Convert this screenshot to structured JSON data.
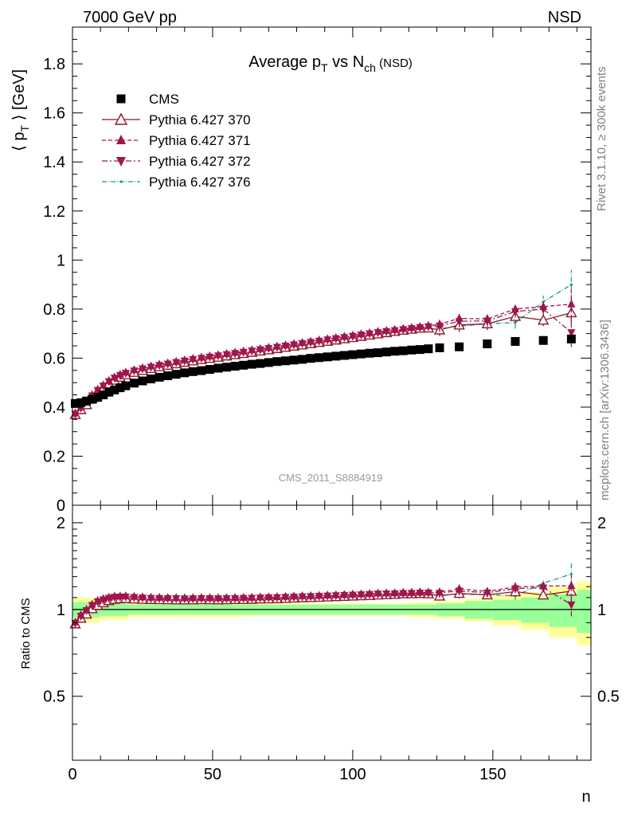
{
  "header": {
    "left": "7000 GeV pp",
    "right": "NSD"
  },
  "side_texts": {
    "rivet": "Rivet 3.1.10, ≥ 300k events",
    "mcplots": "mcplots.cern.ch [arXiv:1306.3436]"
  },
  "watermark": "CMS_2011_S8884919",
  "chart_data": [
    {
      "type": "scatter",
      "title_parts": {
        "main": "Average p",
        "sub1": "T",
        "mid": " vs N",
        "sub2": "ch",
        "suffix": " (NSD)"
      },
      "ylabel_parts": {
        "pre": "⟨ p",
        "sub": "T",
        "post": " ⟩ [GeV]"
      },
      "xlim": [
        0,
        185
      ],
      "ylim": [
        0,
        1.95
      ],
      "y_ticks": [
        "0",
        "0.2",
        "0.4",
        "0.6",
        "0.8",
        "1",
        "1.2",
        "1.4",
        "1.6",
        "1.8"
      ],
      "x": [
        1,
        3,
        5,
        7,
        9,
        11,
        13,
        15,
        17,
        19,
        22,
        25,
        28,
        31,
        34,
        37,
        40,
        43,
        46,
        49,
        52,
        55,
        58,
        61,
        64,
        67,
        70,
        73,
        76,
        79,
        82,
        85,
        88,
        91,
        94,
        97,
        100,
        103,
        106,
        109,
        112,
        115,
        118,
        121,
        124,
        127,
        131,
        138,
        148,
        158,
        168,
        178
      ],
      "series": [
        {
          "name": "CMS",
          "color": "#000000",
          "marker": "square",
          "values": [
            0.415,
            0.418,
            0.425,
            0.432,
            0.44,
            0.45,
            0.461,
            0.47,
            0.479,
            0.487,
            0.498,
            0.507,
            0.515,
            0.522,
            0.528,
            0.534,
            0.54,
            0.545,
            0.549,
            0.554,
            0.559,
            0.563,
            0.567,
            0.571,
            0.575,
            0.578,
            0.582,
            0.586,
            0.589,
            0.592,
            0.595,
            0.599,
            0.602,
            0.605,
            0.608,
            0.611,
            0.614,
            0.617,
            0.62,
            0.622,
            0.625,
            0.628,
            0.63,
            0.633,
            0.635,
            0.638,
            0.642,
            0.646,
            0.658,
            0.668,
            0.672,
            0.678
          ]
        },
        {
          "name": "Pythia 6.427 370",
          "color": "#8b1a2b",
          "marker": "triangle-open",
          "dash": "",
          "values": [
            0.37,
            0.39,
            0.41,
            0.435,
            0.455,
            0.475,
            0.495,
            0.51,
            0.522,
            0.532,
            0.542,
            0.55,
            0.558,
            0.565,
            0.571,
            0.577,
            0.583,
            0.589,
            0.594,
            0.599,
            0.604,
            0.609,
            0.614,
            0.619,
            0.624,
            0.629,
            0.634,
            0.639,
            0.644,
            0.649,
            0.654,
            0.659,
            0.664,
            0.669,
            0.674,
            0.679,
            0.684,
            0.689,
            0.694,
            0.699,
            0.704,
            0.709,
            0.714,
            0.718,
            0.722,
            0.723,
            0.715,
            0.735,
            0.74,
            0.77,
            0.755,
            0.785
          ]
        },
        {
          "name": "Pythia 6.427 371",
          "color": "#a0154d",
          "marker": "triangle-up",
          "dash": "5,3",
          "values": [
            0.375,
            0.4,
            0.425,
            0.45,
            0.472,
            0.49,
            0.508,
            0.522,
            0.533,
            0.542,
            0.552,
            0.56,
            0.567,
            0.574,
            0.58,
            0.586,
            0.592,
            0.598,
            0.603,
            0.608,
            0.613,
            0.618,
            0.623,
            0.628,
            0.633,
            0.638,
            0.643,
            0.648,
            0.653,
            0.658,
            0.663,
            0.668,
            0.673,
            0.678,
            0.683,
            0.688,
            0.693,
            0.698,
            0.703,
            0.708,
            0.712,
            0.716,
            0.72,
            0.724,
            0.728,
            0.732,
            0.738,
            0.762,
            0.76,
            0.8,
            0.81,
            0.82
          ]
        },
        {
          "name": "Pythia 6.427 372",
          "color": "#a0154d",
          "marker": "triangle-down",
          "dash": "7,3,2,3",
          "values": [
            0.372,
            0.397,
            0.422,
            0.447,
            0.469,
            0.487,
            0.505,
            0.519,
            0.53,
            0.539,
            0.549,
            0.557,
            0.564,
            0.571,
            0.577,
            0.583,
            0.589,
            0.595,
            0.6,
            0.605,
            0.61,
            0.615,
            0.62,
            0.625,
            0.63,
            0.635,
            0.64,
            0.645,
            0.65,
            0.655,
            0.66,
            0.665,
            0.67,
            0.675,
            0.68,
            0.685,
            0.69,
            0.695,
            0.7,
            0.705,
            0.709,
            0.713,
            0.717,
            0.721,
            0.725,
            0.729,
            0.732,
            0.75,
            0.752,
            0.79,
            0.8,
            0.705
          ]
        },
        {
          "name": "Pythia 6.427 376",
          "color": "#1a9a8a",
          "marker": "dot",
          "dash": "6,2,1,2",
          "values": [
            0.368,
            0.392,
            0.415,
            0.438,
            0.458,
            0.475,
            0.49,
            0.502,
            0.512,
            0.52,
            0.53,
            0.538,
            0.546,
            0.553,
            0.56,
            0.566,
            0.572,
            0.578,
            0.583,
            0.588,
            0.593,
            0.598,
            0.603,
            0.608,
            0.613,
            0.618,
            0.623,
            0.628,
            0.633,
            0.638,
            0.643,
            0.648,
            0.653,
            0.658,
            0.663,
            0.668,
            0.673,
            0.678,
            0.683,
            0.688,
            0.693,
            0.698,
            0.703,
            0.707,
            0.711,
            0.715,
            0.72,
            0.73,
            0.74,
            0.745,
            0.83,
            0.9
          ]
        }
      ],
      "legend_position": "top-left"
    },
    {
      "type": "scatter",
      "ylabel": "Ratio to CMS",
      "xlabel": "n",
      "ylim": [
        0.3,
        2.3
      ],
      "y_scale": "log",
      "y_ticks": [
        "0.5",
        "1",
        "2"
      ],
      "x_ticks": [
        "0",
        "50",
        "100",
        "150"
      ],
      "band_edges": [
        0,
        10,
        20,
        40,
        60,
        80,
        100,
        120,
        130,
        140,
        150,
        160,
        170,
        180,
        185
      ],
      "band_inner": [
        0.06,
        0.05,
        0.04,
        0.04,
        0.04,
        0.04,
        0.04,
        0.04,
        0.05,
        0.07,
        0.08,
        0.1,
        0.13,
        0.17
      ],
      "band_outer": [
        0.1,
        0.08,
        0.06,
        0.06,
        0.05,
        0.05,
        0.05,
        0.06,
        0.07,
        0.09,
        0.12,
        0.15,
        0.2,
        0.25
      ]
    }
  ]
}
